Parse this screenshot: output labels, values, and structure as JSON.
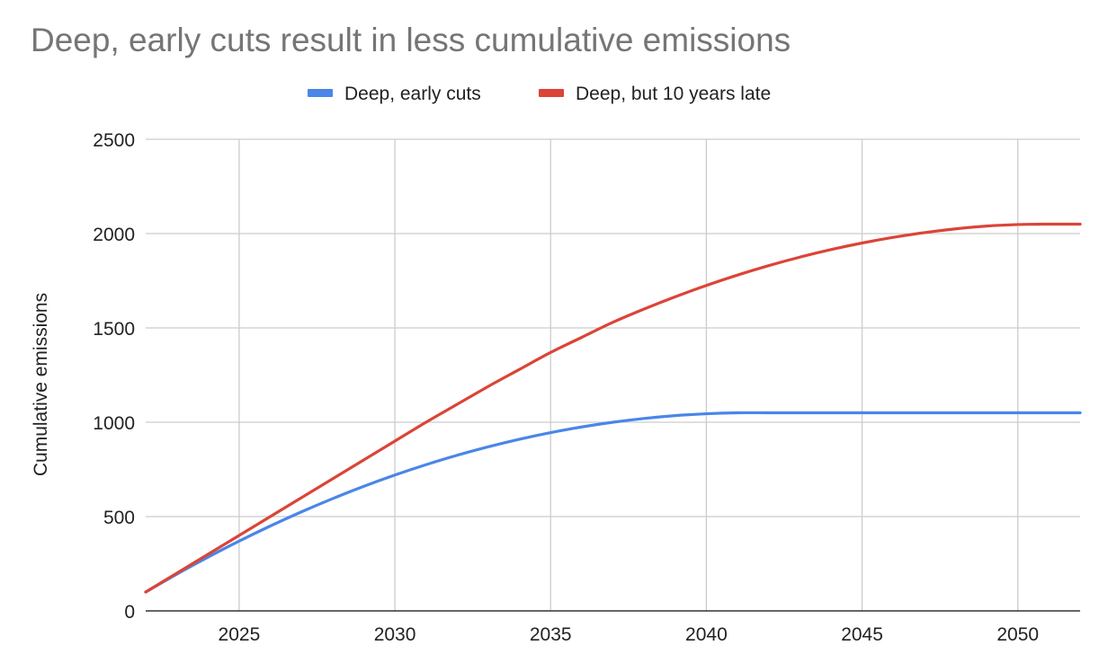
{
  "chart_data": {
    "type": "line",
    "title": "Deep, early cuts result in less cumulative emissions",
    "xlabel": "",
    "ylabel": "Cumulative emissions",
    "xlim": [
      2022,
      2052
    ],
    "ylim": [
      0,
      2500
    ],
    "x_ticks": [
      2025,
      2030,
      2035,
      2040,
      2045,
      2050
    ],
    "y_ticks": [
      0,
      500,
      1000,
      1500,
      2000,
      2500
    ],
    "grid": true,
    "legend_position": "top",
    "x": [
      2022,
      2023,
      2024,
      2025,
      2026,
      2027,
      2028,
      2029,
      2030,
      2031,
      2032,
      2033,
      2034,
      2035,
      2036,
      2037,
      2038,
      2039,
      2040,
      2041,
      2042,
      2043,
      2044,
      2045,
      2046,
      2047,
      2048,
      2049,
      2050,
      2051,
      2052
    ],
    "series": [
      {
        "name": "Deep, early cuts",
        "color": "#4a86e8",
        "values": [
          100,
          195,
          285,
          370,
          450,
          525,
          595,
          660,
          720,
          775,
          825,
          870,
          910,
          945,
          975,
          1000,
          1020,
          1035,
          1045,
          1050,
          1050,
          1050,
          1050,
          1050,
          1050,
          1050,
          1050,
          1050,
          1050,
          1050,
          1050
        ]
      },
      {
        "name": "Deep, but 10 years late",
        "color": "#db4437",
        "values": [
          100,
          200,
          300,
          400,
          500,
          600,
          700,
          800,
          900,
          1000,
          1095,
          1190,
          1280,
          1370,
          1450,
          1530,
          1600,
          1665,
          1725,
          1780,
          1830,
          1875,
          1915,
          1950,
          1980,
          2005,
          2025,
          2040,
          2048,
          2050,
          2050
        ]
      }
    ]
  }
}
